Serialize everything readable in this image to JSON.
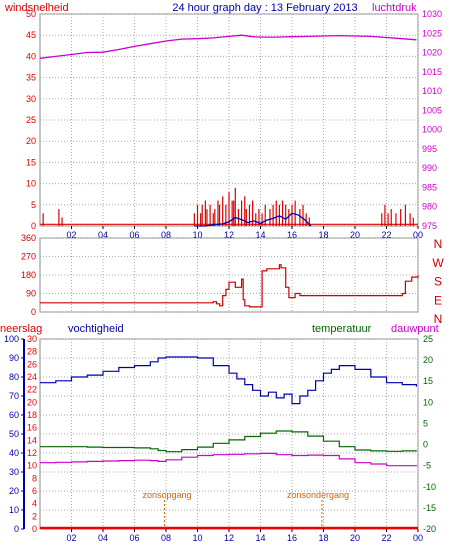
{
  "title": "24 hour graph day : 13 February 2013",
  "colors": {
    "wind": "#dd0000",
    "pressure": "#cc00cc",
    "direction": "#cc0000",
    "humidity": "#0000aa",
    "temperature": "#006600",
    "dewpoint": "#cc00cc",
    "rain": "#ee0000",
    "sun": "#cc6600",
    "grid": "#aaaaaa"
  },
  "x_ticks": [
    "02",
    "04",
    "06",
    "08",
    "10",
    "12",
    "14",
    "16",
    "18",
    "20",
    "22",
    "00"
  ],
  "chart_data": [
    {
      "type": "line",
      "panel": "wind-pressure",
      "labels": {
        "left_title": "windsnelheid",
        "right_title": "luchtdruk"
      },
      "x_range_hours": [
        0,
        24
      ],
      "ylim_left": [
        0,
        50
      ],
      "ylim_right": [
        975,
        1030
      ],
      "y_ticks_left": [
        0,
        5,
        10,
        15,
        20,
        25,
        30,
        35,
        40,
        45,
        50
      ],
      "y_ticks_right": [
        975,
        980,
        985,
        990,
        995,
        1000,
        1005,
        1010,
        1015,
        1020,
        1025,
        1030
      ],
      "series": [
        {
          "axis": "right",
          "color_key": "pressure",
          "x": [
            0,
            1,
            2,
            3,
            4,
            5,
            6,
            7,
            8,
            9,
            10,
            11,
            12,
            12.8,
            13.5,
            14,
            15,
            16,
            17,
            18,
            19,
            20,
            21,
            22,
            23,
            23.9
          ],
          "y": [
            1018.5,
            1019,
            1019.5,
            1020,
            1020.1,
            1020.8,
            1021.6,
            1022.3,
            1023,
            1023.5,
            1023.6,
            1023.8,
            1024.2,
            1024.5,
            1024.1,
            1024,
            1024,
            1024.1,
            1024.2,
            1024.3,
            1024.4,
            1024.3,
            1024.2,
            1023.9,
            1023.6,
            1023.3
          ]
        },
        {
          "axis": "left",
          "color_key": "humidity",
          "x": [
            9.8,
            10.5,
            11,
            11.6,
            12,
            12.4,
            12.8,
            13.2,
            13.6,
            14,
            14.4,
            14.8,
            15.2,
            15.6,
            16,
            16.4,
            16.8,
            17.2
          ],
          "y": [
            0,
            0,
            0.3,
            0.5,
            1,
            2,
            1.5,
            0.8,
            1.2,
            0.6,
            1.4,
            1.8,
            2.4,
            1.6,
            3,
            2.6,
            1.5,
            0
          ]
        }
      ],
      "wind_base": 0.4,
      "wind_spikes": [
        [
          0.2,
          3
        ],
        [
          1.2,
          4
        ],
        [
          1.4,
          2
        ],
        [
          9.8,
          3
        ],
        [
          10.0,
          5
        ],
        [
          10.2,
          3
        ],
        [
          10.3,
          5
        ],
        [
          10.5,
          6
        ],
        [
          10.6,
          4
        ],
        [
          10.8,
          5
        ],
        [
          11.0,
          3
        ],
        [
          11.1,
          4
        ],
        [
          11.3,
          6
        ],
        [
          11.4,
          5
        ],
        [
          11.6,
          7
        ],
        [
          11.8,
          5
        ],
        [
          12.0,
          8
        ],
        [
          12.2,
          6
        ],
        [
          12.3,
          6
        ],
        [
          12.4,
          9
        ],
        [
          12.6,
          4
        ],
        [
          12.8,
          6
        ],
        [
          13.0,
          7
        ],
        [
          13.1,
          4
        ],
        [
          13.3,
          5
        ],
        [
          13.5,
          6
        ],
        [
          13.7,
          3
        ],
        [
          13.9,
          4
        ],
        [
          14.1,
          3
        ],
        [
          14.3,
          5
        ],
        [
          14.6,
          4
        ],
        [
          14.8,
          5
        ],
        [
          15.0,
          6
        ],
        [
          15.2,
          5
        ],
        [
          15.4,
          6
        ],
        [
          15.6,
          5
        ],
        [
          15.8,
          4
        ],
        [
          16.0,
          5
        ],
        [
          16.2,
          6
        ],
        [
          16.5,
          4
        ],
        [
          16.7,
          5
        ],
        [
          16.9,
          3
        ],
        [
          17.1,
          2
        ],
        [
          21.7,
          3
        ],
        [
          21.9,
          5
        ],
        [
          22.1,
          3
        ],
        [
          22.3,
          4
        ],
        [
          22.6,
          3
        ],
        [
          22.9,
          4
        ],
        [
          23.2,
          5
        ],
        [
          23.5,
          3
        ],
        [
          23.7,
          2
        ]
      ]
    },
    {
      "type": "line",
      "panel": "wind-direction",
      "ylim": [
        0,
        360
      ],
      "y_ticks": [
        0,
        90,
        180,
        270,
        360
      ],
      "compass_labels": [
        "N",
        "W",
        "S",
        "E",
        "N"
      ],
      "series": [
        {
          "color_key": "direction",
          "x": [
            0,
            1,
            2,
            3,
            4,
            5,
            6,
            7,
            8,
            9,
            10,
            10.6,
            11.0,
            11.2,
            11.4,
            11.6,
            11.8,
            12.0,
            12.4,
            12.8,
            12.9,
            13.0,
            13.3,
            13.7,
            14.1,
            14.4,
            15.2,
            15.3,
            15.6,
            15.8,
            16.2,
            16.5,
            17,
            18,
            19,
            20,
            21,
            22,
            23,
            23.2,
            23.6,
            24
          ],
          "y": [
            45,
            45,
            45,
            45,
            45,
            45,
            45,
            45,
            45,
            45,
            45,
            45,
            50,
            40,
            30,
            80,
            110,
            145,
            120,
            160,
            60,
            30,
            25,
            25,
            200,
            210,
            230,
            215,
            120,
            70,
            90,
            80,
            80,
            80,
            80,
            80,
            80,
            80,
            90,
            150,
            170,
            180
          ]
        }
      ]
    },
    {
      "type": "line",
      "panel": "humidity-temperature",
      "labels": {
        "rain": "neerslag",
        "humidity": "vochtigheid",
        "temperature": "temperatuur",
        "dewpoint": "dauwpunt"
      },
      "ylim_humidity": [
        0,
        100
      ],
      "y_ticks_humidity": [
        0,
        10,
        20,
        30,
        40,
        50,
        60,
        70,
        80,
        90,
        100
      ],
      "ylim_rain": [
        0,
        30
      ],
      "y_ticks_rain": [
        0,
        2,
        4,
        6,
        8,
        10,
        12,
        14,
        16,
        18,
        20,
        22,
        24,
        26,
        28,
        30
      ],
      "ylim_temperature": [
        -20,
        25
      ],
      "y_ticks_temperature": [
        -20,
        -15,
        -10,
        -5,
        0,
        5,
        10,
        15,
        20,
        25
      ],
      "annotations": {
        "sunrise_label": "zonsopgang",
        "sunrise_hour": 7.9,
        "sunset_label": "zonsondergang",
        "sunset_hour": 17.9
      },
      "series": [
        {
          "color_key": "humidity",
          "axis": "humidity",
          "x": [
            0,
            1,
            2,
            3,
            4,
            5,
            6,
            7,
            7.5,
            8,
            9,
            10,
            11,
            12,
            12.5,
            13,
            13.5,
            14,
            14.5,
            15,
            15.5,
            16,
            16.5,
            17,
            17.5,
            18,
            18.5,
            19,
            19.5,
            20,
            21,
            22,
            23,
            23.9
          ],
          "y": [
            77,
            78,
            80,
            81,
            83,
            85,
            86,
            88,
            90,
            90.5,
            90.5,
            90,
            86,
            82,
            79,
            76,
            73,
            70,
            72,
            69,
            71,
            66,
            70,
            73,
            78,
            82,
            84,
            86,
            86,
            84,
            80,
            77,
            76,
            75
          ]
        },
        {
          "color_key": "temperature",
          "axis": "temperature",
          "x": [
            0,
            1,
            2,
            3,
            4,
            5,
            6,
            7,
            7.5,
            8,
            9,
            10,
            11,
            12,
            13,
            14,
            15,
            16,
            17,
            18,
            19,
            20,
            21,
            22,
            23,
            23.9
          ],
          "y": [
            -0.5,
            -0.5,
            -0.5,
            -0.6,
            -0.7,
            -0.7,
            -0.8,
            -1.0,
            -1.4,
            -1.7,
            -1.2,
            -0.6,
            0.3,
            1.1,
            1.9,
            2.7,
            3.2,
            3.0,
            2.0,
            0.8,
            -0.5,
            -1.3,
            -1.5,
            -1.6,
            -1.5,
            -1.6
          ]
        },
        {
          "color_key": "dewpoint",
          "axis": "temperature",
          "x": [
            0,
            1,
            2,
            3,
            4,
            5,
            6,
            7,
            7.5,
            8,
            9,
            10,
            11,
            12,
            13,
            14,
            15,
            16,
            17,
            18,
            19,
            20,
            21,
            22,
            23,
            23.9
          ],
          "y": [
            -4.3,
            -4.2,
            -4.1,
            -4.0,
            -3.9,
            -3.8,
            -3.7,
            -3.8,
            -4.0,
            -3.6,
            -3.0,
            -2.6,
            -2.4,
            -2.3,
            -2.2,
            -2.1,
            -2.4,
            -2.6,
            -2.5,
            -2.6,
            -3.4,
            -4.3,
            -4.6,
            -5.0,
            -5.0,
            -4.9
          ]
        },
        {
          "color_key": "rain",
          "axis": "rain",
          "x": [
            0,
            24
          ],
          "y": [
            0,
            0
          ]
        }
      ]
    }
  ]
}
